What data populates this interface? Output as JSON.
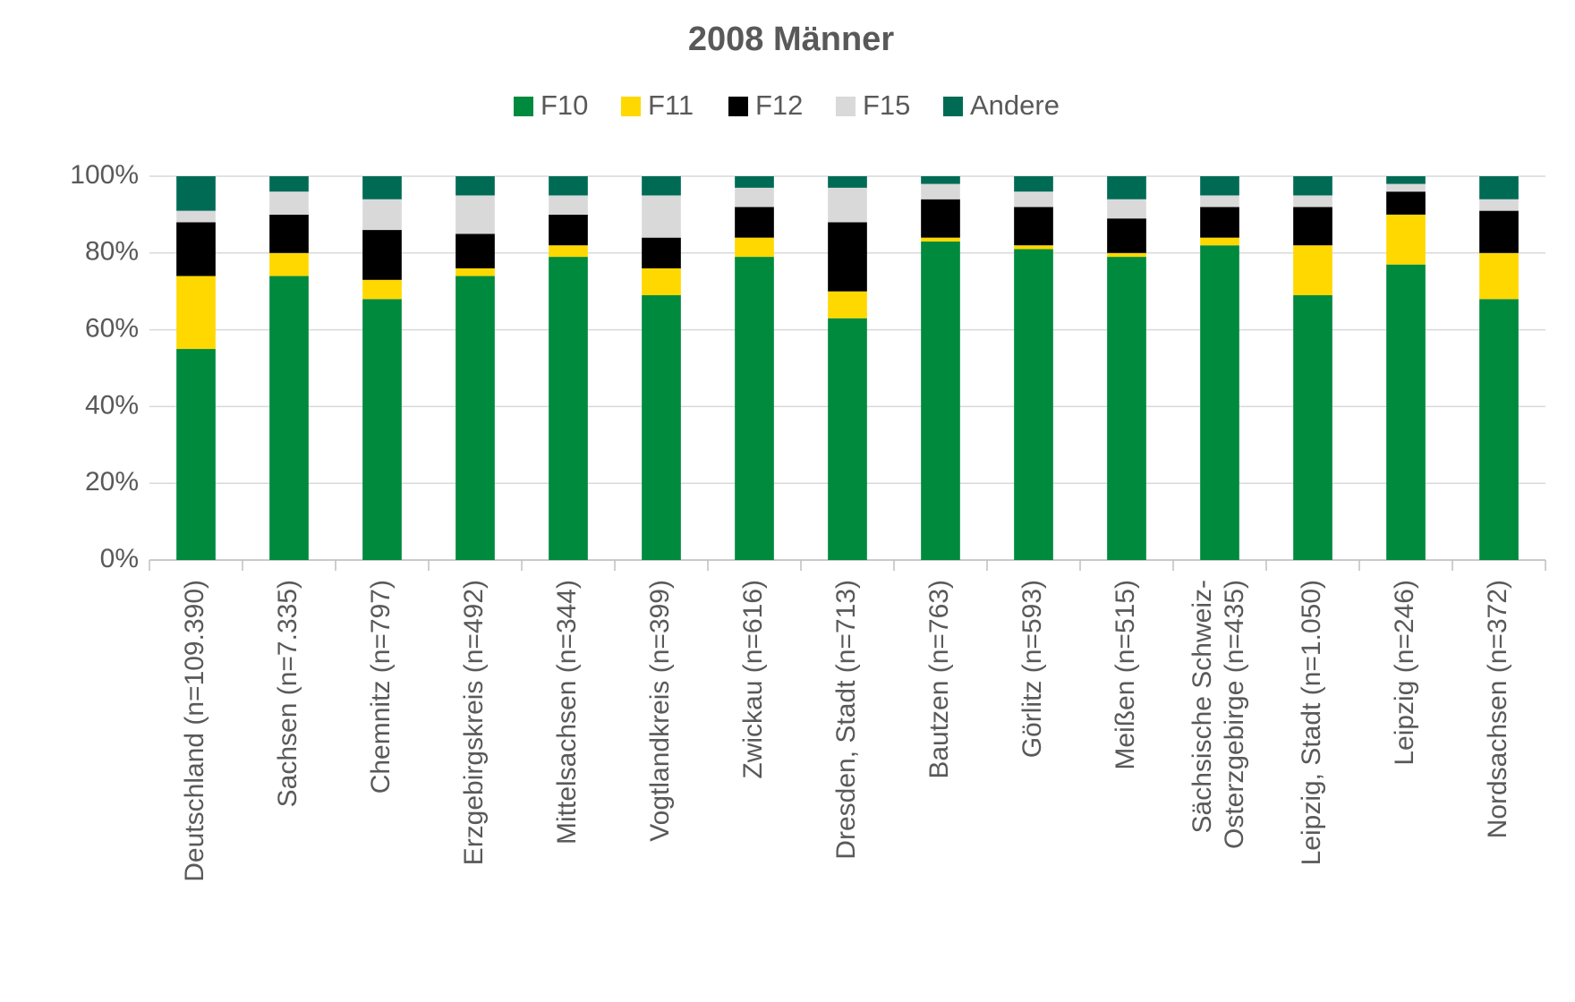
{
  "chart_data": {
    "type": "stacked_bar_100",
    "title": "2008 Männer",
    "categories": [
      "Deutschland (n=109.390)",
      "Sachsen (n=7.335)",
      "Chemnitz (n=797)",
      "Erzgebirgskreis (n=492)",
      "Mittelsachsen (n=344)",
      "Vogtlandkreis (n=399)",
      "Zwickau (n=616)",
      "Dresden, Stadt (n=713)",
      "Bautzen (n=763)",
      "Görlitz (n=593)",
      "Meißen (n=515)",
      "Sächsische Schweiz-\nOsterzgebirge (n=435)",
      "Leipzig, Stadt (n=1.050)",
      "Leipzig (n=246)",
      "Nordsachsen (n=372)"
    ],
    "series": [
      {
        "name": "F10",
        "color": "#008a3e",
        "values": [
          55,
          74,
          68,
          74,
          79,
          69,
          79,
          63,
          83,
          81,
          79,
          82,
          69,
          77,
          68
        ]
      },
      {
        "name": "F11",
        "color": "#ffd800",
        "values": [
          19,
          6,
          5,
          2,
          3,
          7,
          5,
          7,
          1,
          1,
          1,
          2,
          13,
          13,
          12
        ]
      },
      {
        "name": "F12",
        "color": "#000000",
        "values": [
          14,
          10,
          13,
          9,
          8,
          8,
          8,
          18,
          10,
          10,
          9,
          8,
          10,
          6,
          11
        ]
      },
      {
        "name": "F15",
        "color": "#d9d9d9",
        "values": [
          3,
          6,
          8,
          10,
          5,
          11,
          5,
          9,
          4,
          4,
          5,
          3,
          3,
          2,
          3
        ]
      },
      {
        "name": "Andere",
        "color": "#006b55",
        "values": [
          9,
          4,
          6,
          5,
          5,
          5,
          3,
          3,
          2,
          4,
          6,
          5,
          5,
          2,
          6
        ]
      }
    ],
    "ylim": [
      0,
      100
    ],
    "yticks": [
      {
        "value": 0,
        "label": "0%"
      },
      {
        "value": 20,
        "label": "20%"
      },
      {
        "value": 40,
        "label": "40%"
      },
      {
        "value": 60,
        "label": "60%"
      },
      {
        "value": 80,
        "label": "80%"
      },
      {
        "value": 100,
        "label": "100%"
      }
    ],
    "grid": true,
    "legend": "top"
  }
}
